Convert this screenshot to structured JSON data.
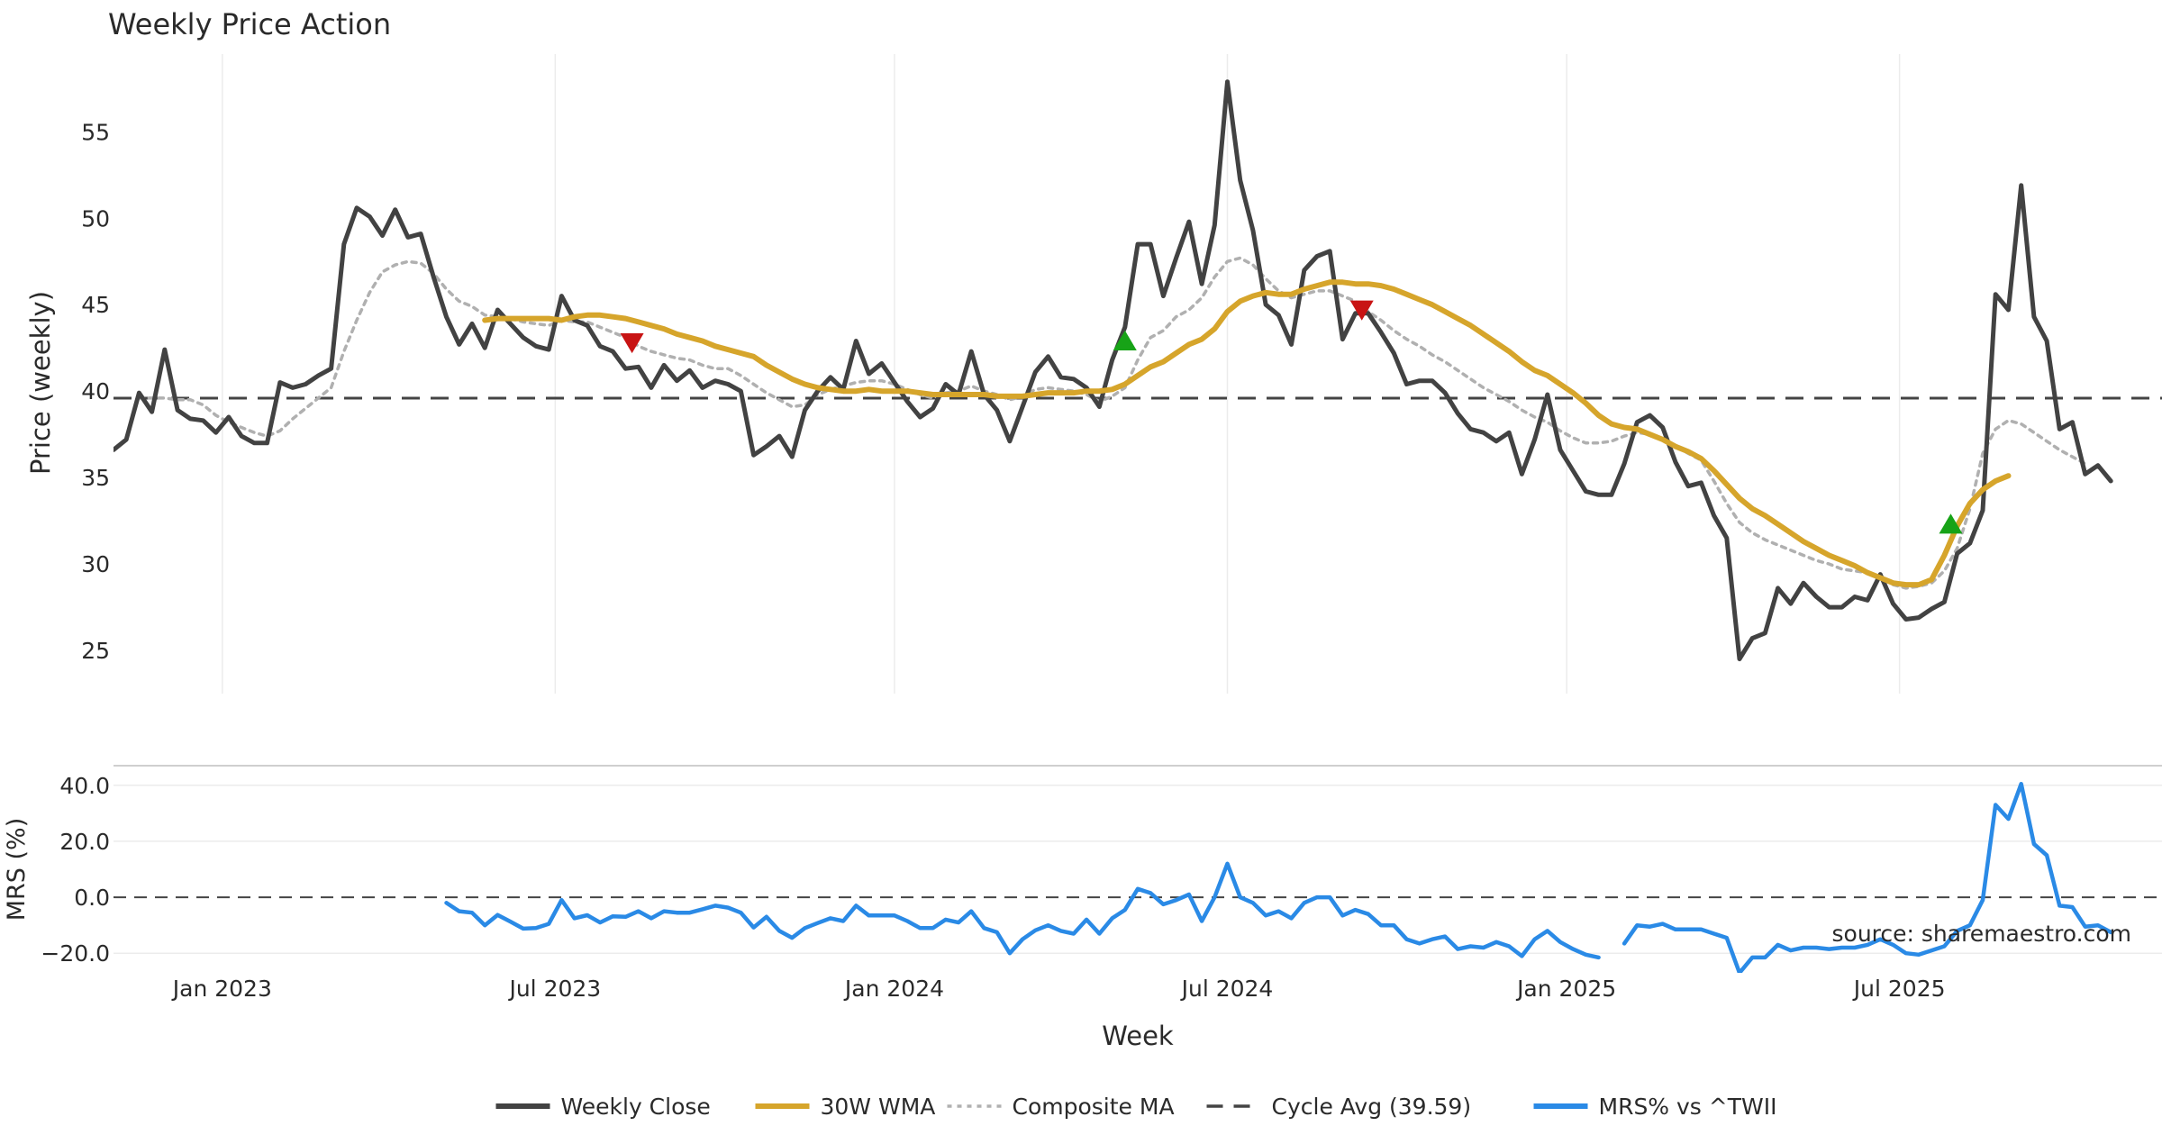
{
  "chart_data": [
    {
      "type": "line",
      "title": "Weekly Price Action",
      "ylabel": "Price (weekly)",
      "xlabel": "Week",
      "ylim": [
        22.5,
        59.5
      ],
      "yticks": [
        25,
        30,
        35,
        40,
        45,
        50,
        55
      ],
      "ytick_labels": [
        "25",
        "30",
        "35",
        "40",
        "45",
        "50",
        "55"
      ],
      "x_start_week": 0,
      "x_end_week": 160,
      "series": [
        {
          "name": "Weekly Close",
          "color": "#424242",
          "start_week": 0,
          "values": [
            36.6,
            37.2,
            39.9,
            38.8,
            42.4,
            38.9,
            38.4,
            38.3,
            37.6,
            38.5,
            37.4,
            37.0,
            37.0,
            40.5,
            40.2,
            40.4,
            40.9,
            41.3,
            48.5,
            50.6,
            50.1,
            49.0,
            50.5,
            48.9,
            49.1,
            46.6,
            44.3,
            42.7,
            43.9,
            42.5,
            44.7,
            43.9,
            43.1,
            42.6,
            42.4,
            45.5,
            44.1,
            43.8,
            42.6,
            42.3,
            41.3,
            41.4,
            40.2,
            41.5,
            40.6,
            41.2,
            40.2,
            40.6,
            40.4,
            40.0,
            36.3,
            36.8,
            37.4,
            36.2,
            38.9,
            40.0,
            40.8,
            40.1,
            42.9,
            41.0,
            41.6,
            40.5,
            39.4,
            38.5,
            39.0,
            40.4,
            39.8,
            42.3,
            39.8,
            38.9,
            37.1,
            39.1,
            41.1,
            42.0,
            40.8,
            40.7,
            40.2,
            39.1,
            41.8,
            43.7,
            48.5,
            48.5,
            45.5,
            47.7,
            49.8,
            46.2,
            49.6,
            57.9,
            52.2,
            49.3,
            45.0,
            44.4,
            42.7,
            47.0,
            47.8,
            48.1,
            43.0,
            44.5,
            44.5,
            43.4,
            42.2,
            40.4,
            40.6,
            40.6,
            39.9,
            38.7,
            37.8,
            37.6,
            37.1,
            37.6,
            35.2,
            37.2,
            39.8,
            36.6,
            35.4,
            34.2,
            34.0,
            34.0,
            35.8,
            38.2,
            38.6,
            37.9,
            35.9,
            34.5,
            34.7,
            32.8,
            31.5,
            24.5,
            25.7,
            26.0,
            28.6,
            27.7,
            28.9,
            28.1,
            27.5,
            27.5,
            28.1,
            27.9,
            29.4,
            27.7,
            26.8,
            26.9,
            27.4,
            27.8,
            30.6,
            31.2,
            33.1,
            45.6,
            44.7,
            51.9,
            44.3,
            42.9,
            37.8,
            38.2,
            35.2,
            35.7,
            34.8
          ]
        },
        {
          "name": "30W WMA",
          "color": "#d6a52b",
          "start_week": 29,
          "values": [
            44.1,
            44.2,
            44.2,
            44.2,
            44.2,
            44.2,
            44.1,
            44.3,
            44.4,
            44.4,
            44.3,
            44.2,
            44.0,
            43.8,
            43.6,
            43.3,
            43.1,
            42.9,
            42.6,
            42.4,
            42.2,
            42.0,
            41.5,
            41.1,
            40.7,
            40.4,
            40.2,
            40.1,
            40.0,
            40.0,
            40.1,
            40.0,
            40.0,
            40.0,
            39.9,
            39.8,
            39.8,
            39.8,
            39.8,
            39.8,
            39.7,
            39.7,
            39.7,
            39.8,
            39.9,
            39.9,
            39.9,
            40.0,
            40.0,
            40.1,
            40.4,
            40.9,
            41.4,
            41.7,
            42.2,
            42.7,
            43.0,
            43.6,
            44.6,
            45.2,
            45.5,
            45.7,
            45.6,
            45.6,
            45.9,
            46.1,
            46.3,
            46.3,
            46.2,
            46.2,
            46.1,
            45.9,
            45.6,
            45.3,
            45.0,
            44.6,
            44.2,
            43.8,
            43.3,
            42.8,
            42.3,
            41.7,
            41.2,
            40.9,
            40.4,
            39.9,
            39.3,
            38.6,
            38.1,
            37.9,
            37.8,
            37.5,
            37.2,
            36.8,
            36.5,
            36.1,
            35.4,
            34.6,
            33.8,
            33.2,
            32.8,
            32.3,
            31.8,
            31.3,
            30.9,
            30.5,
            30.2,
            29.9,
            29.5,
            29.2,
            28.9,
            28.8,
            28.8,
            29.1,
            30.5,
            32.2,
            33.5,
            34.3,
            34.8,
            35.1
          ]
        },
        {
          "name": "Composite MA",
          "color": "#b0b0b0",
          "start_week": 0,
          "values": [
            null,
            null,
            39.6,
            39.6,
            39.6,
            39.5,
            39.5,
            39.2,
            38.6,
            38.2,
            37.9,
            37.6,
            37.4,
            37.7,
            38.4,
            39.0,
            39.6,
            40.2,
            42.3,
            44.1,
            45.7,
            46.9,
            47.3,
            47.5,
            47.4,
            46.8,
            45.9,
            45.2,
            44.9,
            44.4,
            44.3,
            44.2,
            44.0,
            43.9,
            43.8,
            44.1,
            44.0,
            44.0,
            43.7,
            43.4,
            43.1,
            42.6,
            42.3,
            42.1,
            41.9,
            41.8,
            41.5,
            41.3,
            41.3,
            40.9,
            40.4,
            39.9,
            39.5,
            39.1,
            39.2,
            39.8,
            40.1,
            40.3,
            40.5,
            40.6,
            40.6,
            40.4,
            40.1,
            39.8,
            39.6,
            39.9,
            40.0,
            40.3,
            40.0,
            39.8,
            39.5,
            39.7,
            40.1,
            40.2,
            40.1,
            40.0,
            39.8,
            39.4,
            39.7,
            40.2,
            41.8,
            43.1,
            43.5,
            44.3,
            44.7,
            45.4,
            46.6,
            47.5,
            47.7,
            47.3,
            46.5,
            45.8,
            45.4,
            45.6,
            45.8,
            45.8,
            45.5,
            45.2,
            44.6,
            44.1,
            43.5,
            43.0,
            42.6,
            42.1,
            41.7,
            41.2,
            40.7,
            40.2,
            39.8,
            39.4,
            38.9,
            38.5,
            38.2,
            37.7,
            37.3,
            37.0,
            37.0,
            37.1,
            37.4,
            37.6,
            37.5,
            37.2,
            36.8,
            36.4,
            36.0,
            34.8,
            33.5,
            32.4,
            31.8,
            31.4,
            31.1,
            30.8,
            30.5,
            30.2,
            30.0,
            29.7,
            29.6,
            29.5,
            29.2,
            28.8,
            28.6,
            28.7,
            28.9,
            29.6,
            30.9,
            33.2,
            36.4,
            37.8,
            38.3,
            38.1,
            37.6,
            37.1,
            36.6,
            36.2,
            35.8
          ]
        }
      ],
      "reference_line": {
        "name": "Cycle Avg (39.59)",
        "value": 39.59,
        "color": "#444444"
      },
      "markers": [
        {
          "type": "sell",
          "week": 40.5,
          "value": 42.8,
          "color": "#c81414"
        },
        {
          "type": "buy",
          "week": 79,
          "value": 42.9,
          "color": "#17a317"
        },
        {
          "type": "sell",
          "week": 97.5,
          "value": 44.7,
          "color": "#c81414"
        },
        {
          "type": "buy",
          "week": 143.5,
          "value": 32.3,
          "color": "#17a317"
        }
      ]
    },
    {
      "type": "line",
      "ylabel": "MRS (%)",
      "xlabel": "Week",
      "ylim": [
        -27,
        47
      ],
      "yticks": [
        -20,
        0,
        20,
        40
      ],
      "ytick_labels": [
        "−20.0",
        "0.0",
        "20.0",
        "40.0"
      ],
      "xticks": [
        {
          "week": 8.5,
          "label": "Jan 2023"
        },
        {
          "week": 34.5,
          "label": "Jul 2023"
        },
        {
          "week": 61,
          "label": "Jan 2024"
        },
        {
          "week": 87,
          "label": "Jul 2024"
        },
        {
          "week": 113.5,
          "label": "Jan 2025"
        },
        {
          "week": 139.5,
          "label": "Jul 2025"
        }
      ],
      "series": [
        {
          "name": "MRS% vs ^TWII",
          "color": "#2a8ae6",
          "start_week": 26,
          "values": [
            -2.0,
            -5.0,
            -5.5,
            -10.0,
            -6.3,
            -8.7,
            -11.2,
            -11.0,
            -9.5,
            -1.0,
            -7.5,
            -6.4,
            -9.0,
            -6.8,
            -7.0,
            -5.0,
            -7.5,
            -5.0,
            -5.5,
            -5.5,
            -4.3,
            -3.0,
            -3.7,
            -5.5,
            -10.8,
            -7.0,
            -12.0,
            -14.5,
            -11.0,
            -9.2,
            -7.5,
            -8.5,
            -3.0,
            -6.5,
            -6.5,
            -6.5,
            -8.5,
            -11.0,
            -11.0,
            -8.0,
            -9.0,
            -5.0,
            -11.0,
            -12.5,
            -20.0,
            -15.0,
            -11.8,
            -10.0,
            -12.0,
            -13.0,
            -8.0,
            -13.0,
            -7.5,
            -4.5,
            3.0,
            1.5,
            -2.5,
            -1.0,
            1.0,
            -8.5,
            0.0,
            12.0,
            0.0,
            -2.0,
            -6.5,
            -5.0,
            -7.5,
            -2.0,
            0.0,
            0.0,
            -6.5,
            -4.5,
            -6.0,
            -10.0,
            -10.0,
            -15.0,
            -16.5,
            -15.0,
            -14.0,
            -18.5,
            -17.5,
            -18.0,
            -16.0,
            -17.5,
            -21.0,
            -15.0,
            -12.0,
            -16.0,
            -18.5,
            -20.5,
            -21.5,
            null,
            -16.5,
            -10.0,
            -10.5,
            -9.5,
            -11.5,
            -11.5,
            -11.5,
            -13.0,
            -14.5,
            -27.0,
            -21.5,
            -21.5,
            -17.0,
            -19.0,
            -18.0,
            -18.0,
            -18.5,
            -18.0,
            -18.0,
            -17.0,
            -15.0,
            -17.0,
            -20.0,
            -20.5,
            -19.0,
            -17.5,
            -12.0,
            -10.0,
            -1.0,
            33.0,
            28.0,
            40.5,
            19.0,
            15.0,
            -3.0,
            -3.5,
            -10.5,
            -10.0,
            -12.5
          ]
        }
      ],
      "reference_line": {
        "value": 0,
        "color": "#444444"
      }
    }
  ],
  "watermark": "source: sharemaestro.com",
  "legend": {
    "position": "bottom",
    "items": [
      {
        "label": "Weekly Close",
        "style": "solid",
        "color": "#424242"
      },
      {
        "label": "30W WMA",
        "style": "solid",
        "color": "#d6a52b"
      },
      {
        "label": "Composite MA",
        "style": "dotted",
        "color": "#b0b0b0"
      },
      {
        "label": "Cycle Avg (39.59)",
        "style": "dashed",
        "color": "#444444"
      },
      {
        "label": "MRS% vs ^TWII",
        "style": "solid",
        "color": "#2a8ae6"
      }
    ]
  }
}
